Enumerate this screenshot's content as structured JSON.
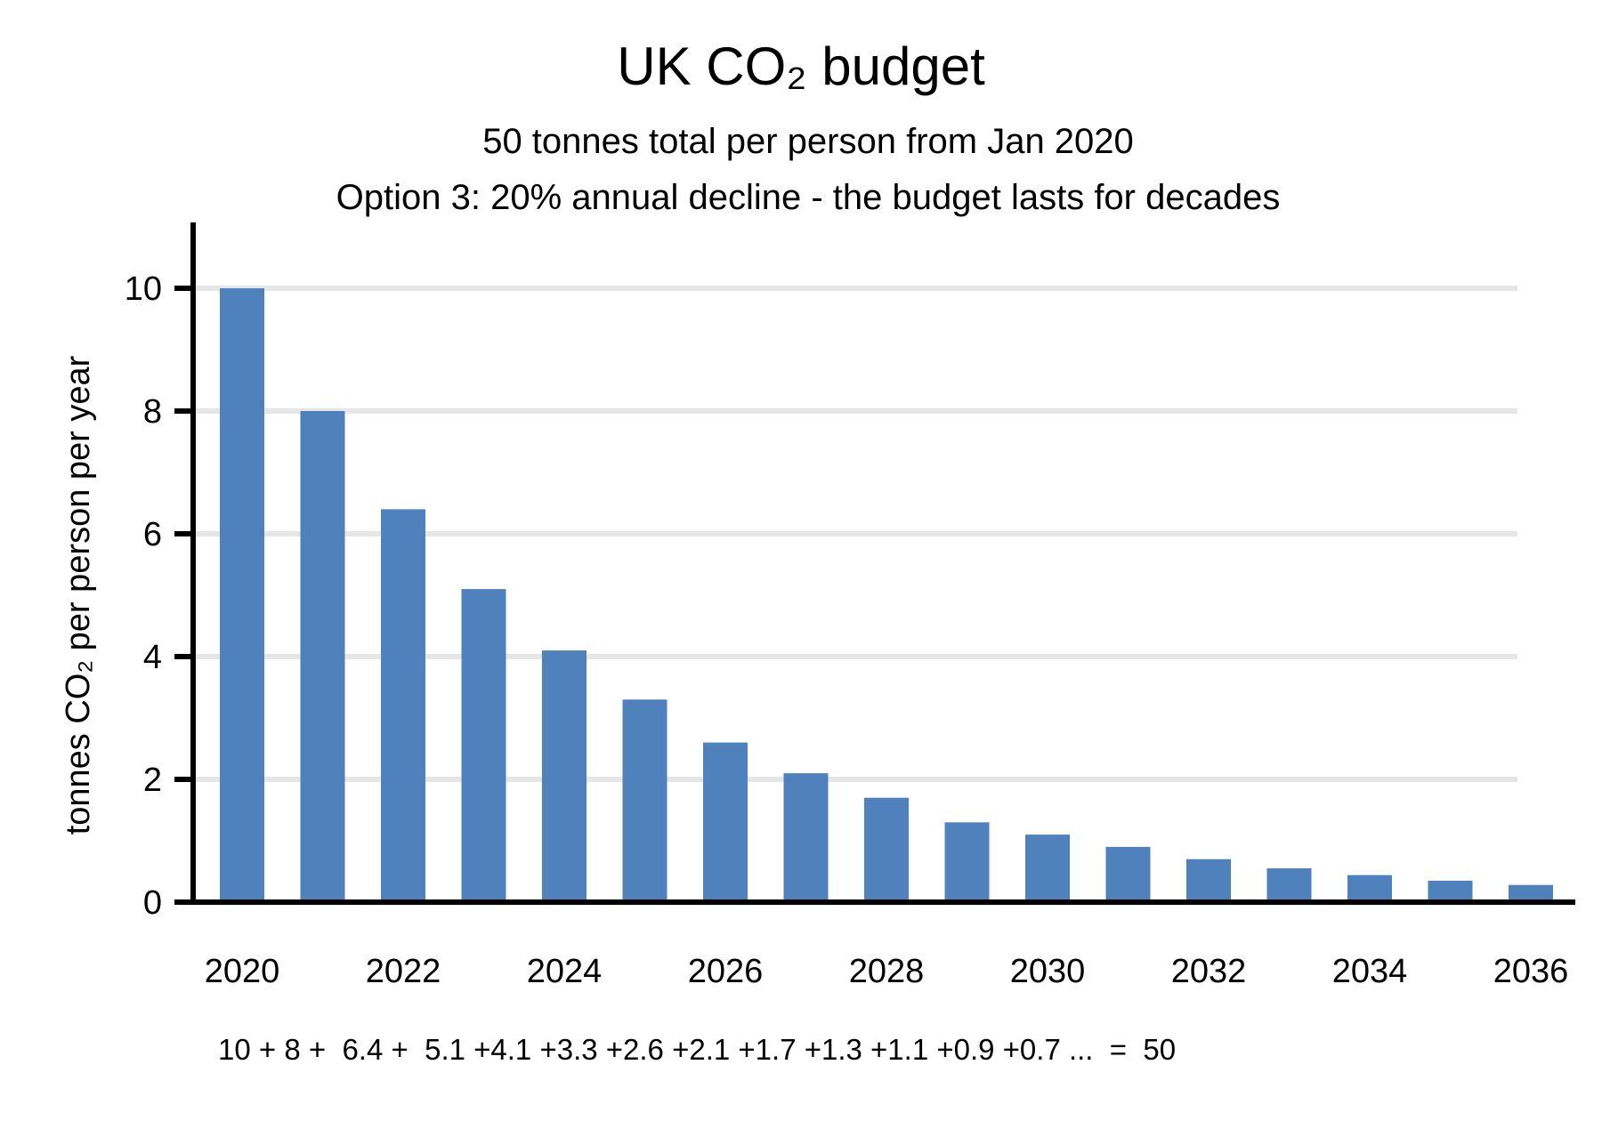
{
  "colors": {
    "bar": "#4f81bd",
    "gridline": "#e6e6e6",
    "axis": "#000000",
    "text": "#000000"
  },
  "chart_data": {
    "type": "bar",
    "title": "UK CO₂ budget",
    "subtitles": [
      "50 tonnes total per person from Jan 2020",
      "Option 3: 20% annual decline - the budget lasts for decades"
    ],
    "ylabel": "tonnes CO₂ per person per year",
    "xlabel": "",
    "ylim": [
      0,
      11
    ],
    "yticks": [
      0,
      2,
      4,
      6,
      8,
      10
    ],
    "grid": "horizontal",
    "categories": [
      "2020",
      "2021",
      "2022",
      "2023",
      "2024",
      "2025",
      "2026",
      "2027",
      "2028",
      "2029",
      "2030",
      "2031",
      "2032",
      "2033",
      "2034",
      "2035",
      "2036"
    ],
    "xtick_labels": [
      "2020",
      "2022",
      "2024",
      "2026",
      "2028",
      "2030",
      "2032",
      "2034",
      "2036"
    ],
    "values": [
      10,
      8,
      6.4,
      5.1,
      4.1,
      3.3,
      2.6,
      2.1,
      1.7,
      1.3,
      1.1,
      0.9,
      0.7,
      0.55,
      0.44,
      0.35,
      0.28
    ],
    "annotation": "10 + 8 +  6.4 +  5.1 +4.1 +3.3 +2.6 +2.1 +1.7 +1.3 +1.1 +0.9 +0.7 ...  =  50"
  }
}
